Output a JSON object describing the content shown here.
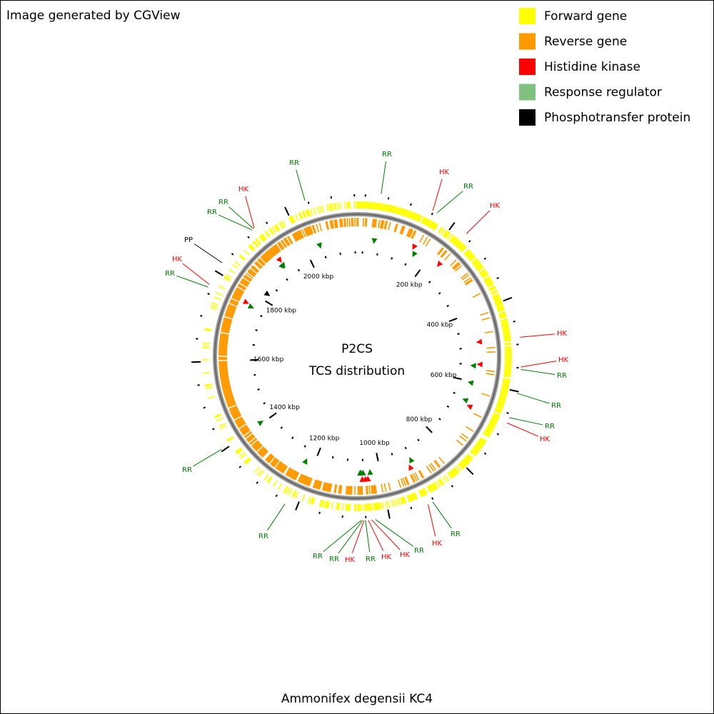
{
  "header": {
    "note": "Image generated by CGView"
  },
  "legend": [
    {
      "label": "Forward gene",
      "color": "#ffff00"
    },
    {
      "label": "Reverse gene",
      "color": "#ff9900"
    },
    {
      "label": "Histidine kinase",
      "color": "#ff0000"
    },
    {
      "label": "Response regulator",
      "color": "#80c080"
    },
    {
      "label": "Phosphotransfer protein",
      "color": "#000000"
    }
  ],
  "map": {
    "title": "P2CS",
    "subtitle": "TCS distribution",
    "tick_labels": [
      {
        "value": 200,
        "label": "200 kbp"
      },
      {
        "value": 400,
        "label": "400 kbp"
      },
      {
        "value": 600,
        "label": "600 kbp"
      },
      {
        "value": 800,
        "label": "800 kbp"
      },
      {
        "value": 1000,
        "label": "1000 kbp"
      },
      {
        "value": 1200,
        "label": "1200 kbp"
      },
      {
        "value": 1400,
        "label": "1400 kbp"
      },
      {
        "value": 1600,
        "label": "1600 kbp"
      },
      {
        "value": 1800,
        "label": "1800 kbp"
      },
      {
        "value": 2000,
        "label": "2000 kbp"
      }
    ],
    "features": [
      {
        "label": "RR",
        "position_kbp": 33,
        "color": "#008000"
      },
      {
        "label": "HK",
        "position_kbp": 148,
        "color": "#ff0000"
      },
      {
        "label": "RR",
        "position_kbp": 158,
        "color": "#008000"
      },
      {
        "label": "HK",
        "position_kbp": 234,
        "color": "#ff0000"
      },
      {
        "label": "HK",
        "position_kbp": 485,
        "color": "#ff0000"
      },
      {
        "label": "HK",
        "position_kbp": 548,
        "color": "#ff0000"
      },
      {
        "label": "RR",
        "position_kbp": 553,
        "color": "#008000"
      },
      {
        "label": "RR",
        "position_kbp": 604,
        "color": "#008000"
      },
      {
        "label": "RR",
        "position_kbp": 658,
        "color": "#008000"
      },
      {
        "label": "HK",
        "position_kbp": 670,
        "color": "#ff0000"
      },
      {
        "label": "RR",
        "position_kbp": 903,
        "color": "#008000"
      },
      {
        "label": "HK",
        "position_kbp": 914,
        "color": "#ff0000"
      },
      {
        "label": "RR",
        "position_kbp": 1030,
        "color": "#008000"
      },
      {
        "label": "HK",
        "position_kbp": 1038,
        "color": "#ff0000"
      },
      {
        "label": "HK",
        "position_kbp": 1045,
        "color": "#ff0000"
      },
      {
        "label": "RR",
        "position_kbp": 1051,
        "color": "#008000"
      },
      {
        "label": "HK",
        "position_kbp": 1054,
        "color": "#ff0000"
      },
      {
        "label": "RR",
        "position_kbp": 1057,
        "color": "#008000"
      },
      {
        "label": "RR",
        "position_kbp": 1060,
        "color": "#008000"
      },
      {
        "label": "RR",
        "position_kbp": 1226,
        "color": "#008000"
      },
      {
        "label": "RR",
        "position_kbp": 1404,
        "color": "#008000"
      },
      {
        "label": "RR",
        "position_kbp": 1763,
        "color": "#008000"
      },
      {
        "label": "HK",
        "position_kbp": 1769,
        "color": "#ff0000"
      },
      {
        "label": "PP",
        "position_kbp": 1822,
        "color": "#000000"
      },
      {
        "label": "RR",
        "position_kbp": 1916,
        "color": "#008000"
      },
      {
        "label": "RR",
        "position_kbp": 1920,
        "color": "#008000"
      },
      {
        "label": "HK",
        "position_kbp": 1922,
        "color": "#ff0000"
      },
      {
        "label": "RR",
        "position_kbp": 2044,
        "color": "#008000"
      }
    ]
  },
  "footer": {
    "organism": "Ammonifex degensii KC4"
  }
}
